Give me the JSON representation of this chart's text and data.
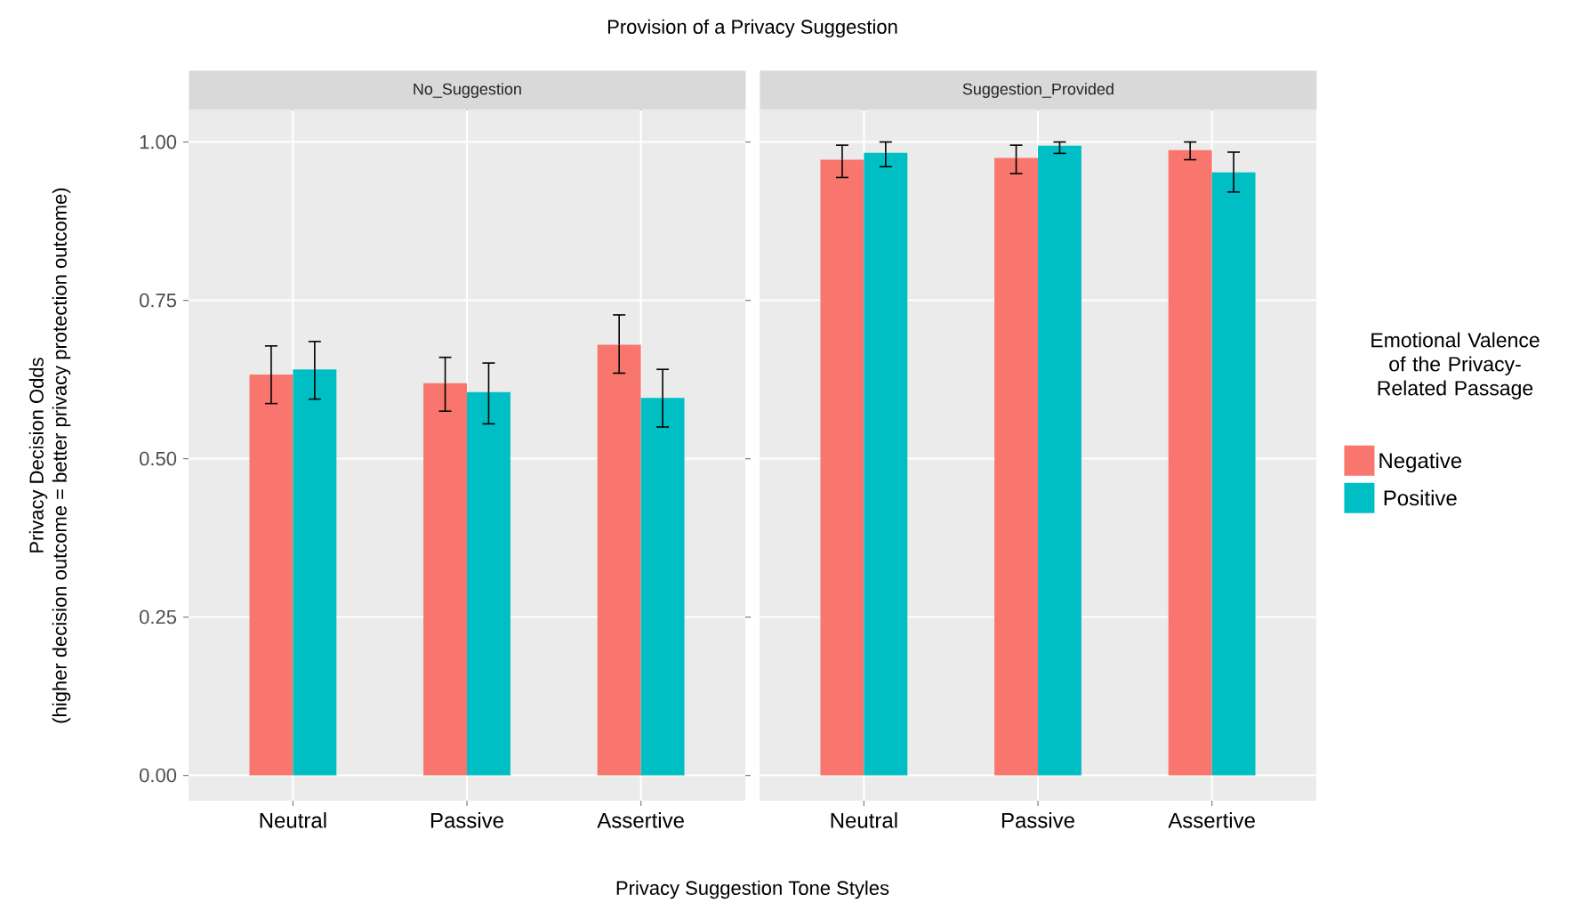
{
  "chart_data": [
    {
      "type": "bar",
      "title": "No_Suggestion",
      "annotations": [
        "Provision of a Privacy Suggestion"
      ],
      "xlabel": "Privacy Suggestion Tone Styles",
      "ylabel": "Privacy Decision Odds (higher decision outcome = better privacy protection outcome)",
      "categories": [
        "Neutral",
        "Passive",
        "Assertive"
      ],
      "ylim": [
        -0.04,
        1.05
      ],
      "yticks": [
        {
          "value": 0,
          "label": "0.00"
        },
        {
          "value": 0.25,
          "label": "0.25"
        },
        {
          "value": 0.5,
          "label": "0.50"
        },
        {
          "value": 0.75,
          "label": "0.75"
        },
        {
          "value": 1,
          "label": "1.00"
        }
      ],
      "grid": true,
      "series": [
        {
          "color": "#f8766d",
          "values": [
            0.633,
            0.619,
            0.68
          ],
          "errors": [
            [
              0.587,
              0.678
            ],
            [
              0.575,
              0.66
            ],
            [
              0.635,
              0.727
            ]
          ]
        },
        {
          "color": "#00bfc4",
          "values": [
            0.641,
            0.605,
            0.596
          ],
          "errors": [
            [
              0.594,
              0.685
            ],
            [
              0.555,
              0.651
            ],
            [
              0.55,
              0.641
            ]
          ]
        }
      ]
    },
    {
      "type": "bar",
      "title": "Suggestion_Provided",
      "categories": [
        "Neutral",
        "Passive",
        "Assertive"
      ],
      "ylim": [
        -0.04,
        1.05
      ],
      "yticks": [
        0,
        0.25,
        0.5,
        0.75,
        1
      ],
      "grid": true,
      "tick_labels": "x",
      "legend": "right",
      "legend_title": "Emotional Valence of the Privacy-Related Passage",
      "series": [
        {
          "name": "Negative",
          "color": "#f8766d",
          "values": [
            0.972,
            0.975,
            0.987
          ],
          "errors": [
            [
              0.944,
              0.995
            ],
            [
              0.95,
              0.995
            ],
            [
              0.972,
              1.0
            ]
          ]
        },
        {
          "name": "Positive",
          "color": "#00bfc4",
          "values": [
            0.983,
            0.994,
            0.952
          ],
          "errors": [
            [
              0.961,
              1.0
            ],
            [
              0.982,
              1.0
            ],
            [
              0.921,
              0.984
            ]
          ]
        }
      ]
    }
  ]
}
